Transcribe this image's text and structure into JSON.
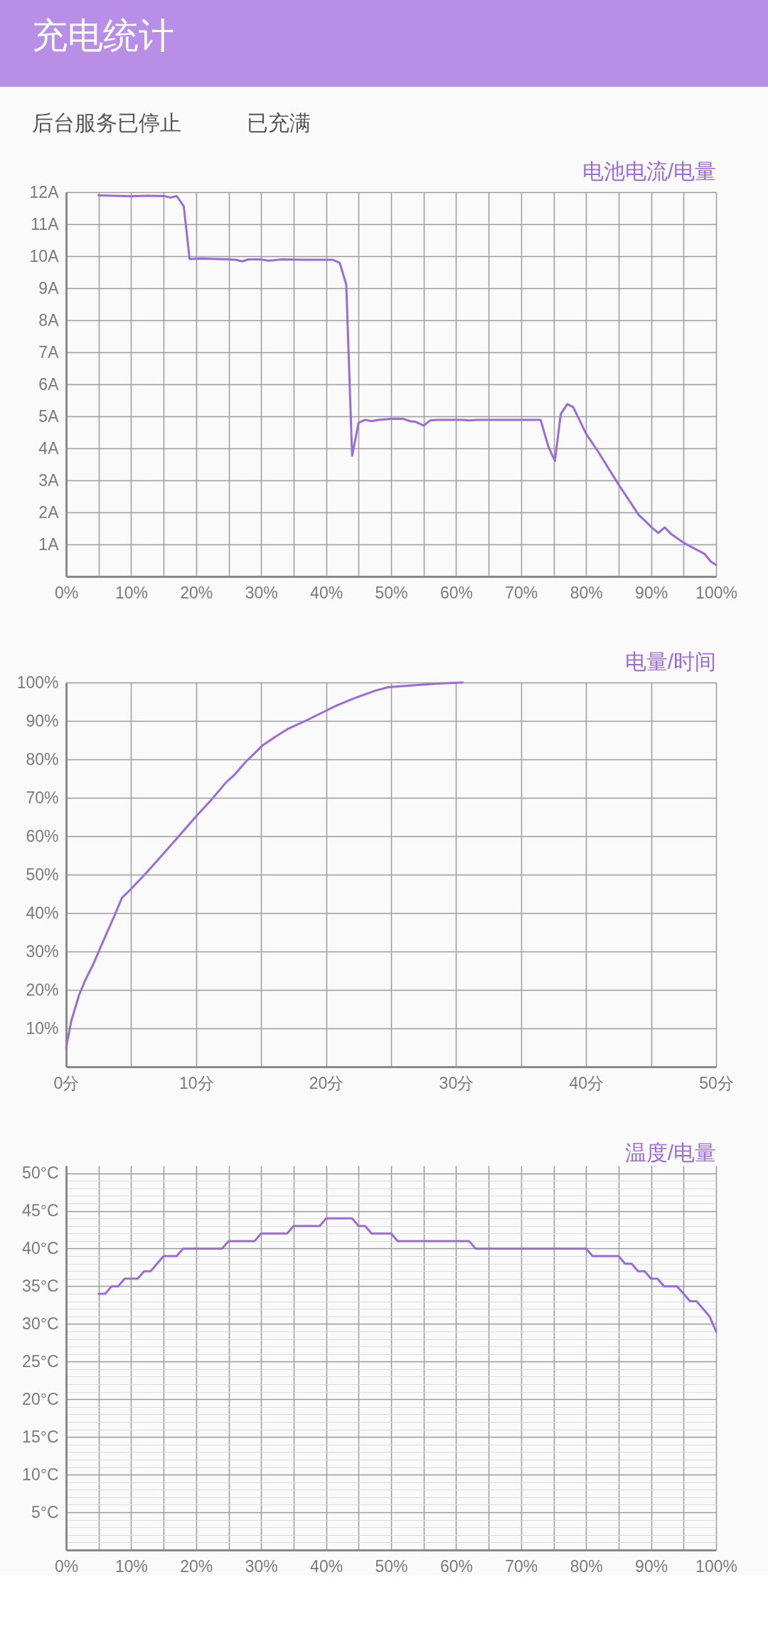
{
  "chart_data": [
    {
      "type": "other",
      "title": "充电统计",
      "annotations": [
        "后台服务已停止",
        "已充满"
      ]
    },
    {
      "type": "line",
      "title": "电池电流/电量",
      "x": [
        5,
        10,
        12.5,
        15,
        16.1,
        17,
        18.1,
        19,
        21,
        25.1,
        26.1,
        27.1,
        28,
        29.9,
        31.1,
        31.9,
        33.1,
        36.8,
        41,
        42.1,
        43.1,
        44,
        45,
        46,
        47,
        48.1,
        50,
        51.9,
        52.9,
        53.9,
        55,
        56,
        57.2,
        60.9,
        62.1,
        63.3,
        67.8,
        73,
        74.2,
        75.2,
        76.1,
        77.1,
        78,
        80,
        82,
        85,
        87,
        88.1,
        89.1,
        90.1,
        91.1,
        92.1,
        93.1,
        95.1,
        98.2,
        99.2,
        100
      ],
      "series": [
        {
          "color": "#9b6bd8",
          "values": [
            11.9,
            11.87,
            11.89,
            11.88,
            11.83,
            11.88,
            11.56,
            9.91,
            9.93,
            9.9,
            9.89,
            9.84,
            9.9,
            9.9,
            9.86,
            9.87,
            9.9,
            9.89,
            9.89,
            9.79,
            9.11,
            3.77,
            4.8,
            4.89,
            4.85,
            4.89,
            4.92,
            4.92,
            4.85,
            4.82,
            4.71,
            4.87,
            4.89,
            4.89,
            4.87,
            4.89,
            4.89,
            4.89,
            4.05,
            3.61,
            5.07,
            5.38,
            5.29,
            4.46,
            3.85,
            2.87,
            2.26,
            1.92,
            1.73,
            1.53,
            1.36,
            1.53,
            1.32,
            1.04,
            0.71,
            0.46,
            0.36
          ]
        }
      ],
      "xlim": [
        0,
        100
      ],
      "ylim": [
        0,
        12
      ],
      "xticks": [
        {
          "value": 0,
          "label": "0%"
        },
        {
          "value": 5,
          "label": null
        },
        {
          "value": 10,
          "label": "10%"
        },
        {
          "value": 15,
          "label": null
        },
        {
          "value": 20,
          "label": "20%"
        },
        {
          "value": 25,
          "label": null
        },
        {
          "value": 30,
          "label": "30%"
        },
        {
          "value": 35,
          "label": null
        },
        {
          "value": 40,
          "label": "40%"
        },
        {
          "value": 45,
          "label": null
        },
        {
          "value": 50,
          "label": "50%"
        },
        {
          "value": 55,
          "label": null
        },
        {
          "value": 60,
          "label": "60%"
        },
        {
          "value": 65,
          "label": null
        },
        {
          "value": 70,
          "label": "70%"
        },
        {
          "value": 75,
          "label": null
        },
        {
          "value": 80,
          "label": "80%"
        },
        {
          "value": 85,
          "label": null
        },
        {
          "value": 90,
          "label": "90%"
        },
        {
          "value": 95,
          "label": null
        },
        {
          "value": 100,
          "label": "100%"
        }
      ],
      "yticks": [
        {
          "value": 0,
          "label": null
        },
        {
          "value": 1,
          "label": "1A"
        },
        {
          "value": 2,
          "label": "2A"
        },
        {
          "value": 3,
          "label": "3A"
        },
        {
          "value": 4,
          "label": "4A"
        },
        {
          "value": 5,
          "label": "5A"
        },
        {
          "value": 6,
          "label": "6A"
        },
        {
          "value": 7,
          "label": "7A"
        },
        {
          "value": 8,
          "label": "8A"
        },
        {
          "value": 9,
          "label": "9A"
        },
        {
          "value": 10,
          "label": "10A"
        },
        {
          "value": 11,
          "label": "11A"
        },
        {
          "value": 12,
          "label": "12A"
        }
      ],
      "grid": true
    },
    {
      "type": "line",
      "title": "电量/时间",
      "x": [
        0,
        0.4,
        1,
        1.4,
        2.1,
        2.8,
        3.7,
        4.3,
        5,
        6.2,
        7.5,
        8.8,
        10,
        11.2,
        12.3,
        12.9,
        13.8,
        14.5,
        15.1,
        16.2,
        17.1,
        18.4,
        19.9,
        20.8,
        22.1,
        23.8,
        24.8,
        26.5,
        28.6,
        30.5
      ],
      "series": [
        {
          "color": "#9b6bd8",
          "values": [
            5,
            12,
            18.7,
            22,
            26.8,
            32.3,
            39.2,
            44,
            46.3,
            50.6,
            55.5,
            60.5,
            65.2,
            69.6,
            74,
            75.8,
            79.3,
            81.6,
            83.6,
            86.1,
            88,
            90,
            92.5,
            94,
            95.8,
            97.9,
            98.8,
            99.2,
            99.7,
            100
          ]
        }
      ],
      "xlim": [
        0,
        50
      ],
      "ylim": [
        0,
        100
      ],
      "xticks": [
        {
          "value": 0,
          "label": "0分"
        },
        {
          "value": 5,
          "label": null
        },
        {
          "value": 10,
          "label": "10分"
        },
        {
          "value": 15,
          "label": null
        },
        {
          "value": 20,
          "label": "20分"
        },
        {
          "value": 25,
          "label": null
        },
        {
          "value": 30,
          "label": "30分"
        },
        {
          "value": 35,
          "label": null
        },
        {
          "value": 40,
          "label": "40分"
        },
        {
          "value": 45,
          "label": null
        },
        {
          "value": 50,
          "label": "50分"
        }
      ],
      "yticks": [
        {
          "value": 0,
          "label": null
        },
        {
          "value": 10,
          "label": "10%"
        },
        {
          "value": 20,
          "label": "20%"
        },
        {
          "value": 30,
          "label": "30%"
        },
        {
          "value": 40,
          "label": "40%"
        },
        {
          "value": 50,
          "label": "50%"
        },
        {
          "value": 60,
          "label": "60%"
        },
        {
          "value": 70,
          "label": "70%"
        },
        {
          "value": 80,
          "label": "80%"
        },
        {
          "value": 90,
          "label": "90%"
        },
        {
          "value": 100,
          "label": "100%"
        }
      ],
      "grid": true
    },
    {
      "type": "line",
      "title": "温度/电量",
      "x": [
        5,
        6,
        7,
        8,
        9,
        11,
        12,
        13,
        15,
        17,
        18,
        24,
        25,
        29,
        30,
        34,
        35,
        39,
        40,
        44,
        45,
        46,
        47,
        50,
        51,
        62,
        63,
        80,
        81,
        85,
        86,
        87,
        88,
        89,
        90,
        91,
        92,
        94,
        96,
        97,
        99,
        100
      ],
      "series": [
        {
          "color": "#9b6bd8",
          "values": [
            34,
            34,
            35,
            35,
            36,
            36,
            37,
            37,
            39,
            39,
            40,
            40,
            41,
            41,
            42,
            42,
            43,
            43,
            44,
            44,
            43,
            43,
            42,
            42,
            41,
            41,
            40,
            40,
            39,
            39,
            38,
            38,
            37,
            37,
            36,
            36,
            35,
            35,
            33,
            33,
            31,
            29
          ]
        }
      ],
      "xlim": [
        0,
        100
      ],
      "ylim": [
        0,
        51
      ],
      "xticks": [
        {
          "value": 0,
          "label": "0%"
        },
        {
          "value": 5,
          "label": null
        },
        {
          "value": 10,
          "label": "10%"
        },
        {
          "value": 15,
          "label": null
        },
        {
          "value": 20,
          "label": "20%"
        },
        {
          "value": 25,
          "label": null
        },
        {
          "value": 30,
          "label": "30%"
        },
        {
          "value": 35,
          "label": null
        },
        {
          "value": 40,
          "label": "40%"
        },
        {
          "value": 45,
          "label": null
        },
        {
          "value": 50,
          "label": "50%"
        },
        {
          "value": 55,
          "label": null
        },
        {
          "value": 60,
          "label": "60%"
        },
        {
          "value": 65,
          "label": null
        },
        {
          "value": 70,
          "label": "70%"
        },
        {
          "value": 75,
          "label": null
        },
        {
          "value": 80,
          "label": "80%"
        },
        {
          "value": 85,
          "label": null
        },
        {
          "value": 90,
          "label": "90%"
        },
        {
          "value": 95,
          "label": null
        },
        {
          "value": 100,
          "label": "100%"
        }
      ],
      "yticks": [
        {
          "value": 0,
          "label": null
        },
        {
          "value": 1,
          "label": null
        },
        {
          "value": 2,
          "label": null
        },
        {
          "value": 3,
          "label": null
        },
        {
          "value": 4,
          "label": null
        },
        {
          "value": 5,
          "label": "5°C"
        },
        {
          "value": 6,
          "label": null
        },
        {
          "value": 7,
          "label": null
        },
        {
          "value": 8,
          "label": null
        },
        {
          "value": 9,
          "label": null
        },
        {
          "value": 10,
          "label": "10°C"
        },
        {
          "value": 11,
          "label": null
        },
        {
          "value": 12,
          "label": null
        },
        {
          "value": 13,
          "label": null
        },
        {
          "value": 14,
          "label": null
        },
        {
          "value": 15,
          "label": "15°C"
        },
        {
          "value": 16,
          "label": null
        },
        {
          "value": 17,
          "label": null
        },
        {
          "value": 18,
          "label": null
        },
        {
          "value": 19,
          "label": null
        },
        {
          "value": 20,
          "label": "20°C"
        },
        {
          "value": 21,
          "label": null
        },
        {
          "value": 22,
          "label": null
        },
        {
          "value": 23,
          "label": null
        },
        {
          "value": 24,
          "label": null
        },
        {
          "value": 25,
          "label": "25°C"
        },
        {
          "value": 26,
          "label": null
        },
        {
          "value": 27,
          "label": null
        },
        {
          "value": 28,
          "label": null
        },
        {
          "value": 29,
          "label": null
        },
        {
          "value": 30,
          "label": "30°C"
        },
        {
          "value": 31,
          "label": null
        },
        {
          "value": 32,
          "label": null
        },
        {
          "value": 33,
          "label": null
        },
        {
          "value": 34,
          "label": null
        },
        {
          "value": 35,
          "label": "35°C"
        },
        {
          "value": 36,
          "label": null
        },
        {
          "value": 37,
          "label": null
        },
        {
          "value": 38,
          "label": null
        },
        {
          "value": 39,
          "label": null
        },
        {
          "value": 40,
          "label": "40°C"
        },
        {
          "value": 41,
          "label": null
        },
        {
          "value": 42,
          "label": null
        },
        {
          "value": 43,
          "label": null
        },
        {
          "value": 44,
          "label": null
        },
        {
          "value": 45,
          "label": "45°C"
        },
        {
          "value": 46,
          "label": null
        },
        {
          "value": 47,
          "label": null
        },
        {
          "value": 48,
          "label": null
        },
        {
          "value": 49,
          "label": null
        },
        {
          "value": 50,
          "label": "50°C"
        }
      ],
      "grid": true
    }
  ]
}
